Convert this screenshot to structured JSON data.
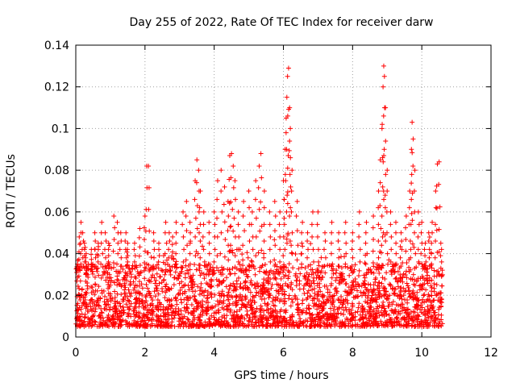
{
  "chart_data": {
    "type": "scatter",
    "title": "Day 255 of 2022, Rate Of TEC Index for receiver darw",
    "xlabel": "GPS time / hours",
    "ylabel": "ROTI / TECUs",
    "xlim": [
      0,
      12
    ],
    "ylim": [
      0,
      0.14
    ],
    "xticks": [
      "0",
      "2",
      "4",
      "6",
      "8",
      "10",
      "12"
    ],
    "yticks": [
      "0",
      "0.02",
      "0.04",
      "0.06",
      "0.08",
      "0.1",
      "0.12",
      "0.14"
    ],
    "grid": true,
    "marker": "+",
    "color": "#ff0000",
    "baseline_band": {
      "min": 0.005,
      "max": 0.035
    },
    "points": [
      [
        0.05,
        0.035
      ],
      [
        0.1,
        0.048
      ],
      [
        0.15,
        0.055
      ],
      [
        0.2,
        0.05
      ],
      [
        0.25,
        0.045
      ],
      [
        0.3,
        0.04
      ],
      [
        0.45,
        0.042
      ],
      [
        0.55,
        0.05
      ],
      [
        0.65,
        0.045
      ],
      [
        0.75,
        0.055
      ],
      [
        0.85,
        0.05
      ],
      [
        0.95,
        0.045
      ],
      [
        1.1,
        0.058
      ],
      [
        1.2,
        0.055
      ],
      [
        1.3,
        0.05
      ],
      [
        1.45,
        0.05
      ],
      [
        1.5,
        0.045
      ],
      [
        1.7,
        0.045
      ],
      [
        1.85,
        0.052
      ],
      [
        2.0,
        0.058
      ],
      [
        2.05,
        0.082
      ],
      [
        2.1,
        0.082
      ],
      [
        2.25,
        0.05
      ],
      [
        2.4,
        0.045
      ],
      [
        2.6,
        0.055
      ],
      [
        2.7,
        0.05
      ],
      [
        2.8,
        0.048
      ],
      [
        2.9,
        0.055
      ],
      [
        3.1,
        0.06
      ],
      [
        3.2,
        0.065
      ],
      [
        3.3,
        0.055
      ],
      [
        3.45,
        0.075
      ],
      [
        3.5,
        0.085
      ],
      [
        3.55,
        0.08
      ],
      [
        3.6,
        0.07
      ],
      [
        3.7,
        0.06
      ],
      [
        3.85,
        0.055
      ],
      [
        4.0,
        0.06
      ],
      [
        4.1,
        0.075
      ],
      [
        4.2,
        0.08
      ],
      [
        4.3,
        0.072
      ],
      [
        4.4,
        0.065
      ],
      [
        4.45,
        0.087
      ],
      [
        4.5,
        0.088
      ],
      [
        4.55,
        0.082
      ],
      [
        4.6,
        0.075
      ],
      [
        4.7,
        0.06
      ],
      [
        4.85,
        0.065
      ],
      [
        5.0,
        0.07
      ],
      [
        5.1,
        0.06
      ],
      [
        5.2,
        0.075
      ],
      [
        5.3,
        0.082
      ],
      [
        5.35,
        0.088
      ],
      [
        5.45,
        0.07
      ],
      [
        5.6,
        0.06
      ],
      [
        5.75,
        0.065
      ],
      [
        5.9,
        0.06
      ],
      [
        6.0,
        0.075
      ],
      [
        6.05,
        0.09
      ],
      [
        6.08,
        0.105
      ],
      [
        6.1,
        0.115
      ],
      [
        6.12,
        0.125
      ],
      [
        6.15,
        0.129
      ],
      [
        6.18,
        0.11
      ],
      [
        6.2,
        0.1
      ],
      [
        6.25,
        0.08
      ],
      [
        6.4,
        0.065
      ],
      [
        6.55,
        0.055
      ],
      [
        6.7,
        0.05
      ],
      [
        6.85,
        0.06
      ],
      [
        7.0,
        0.06
      ],
      [
        7.2,
        0.05
      ],
      [
        7.4,
        0.055
      ],
      [
        7.6,
        0.05
      ],
      [
        7.8,
        0.055
      ],
      [
        8.0,
        0.05
      ],
      [
        8.2,
        0.06
      ],
      [
        8.4,
        0.055
      ],
      [
        8.6,
        0.058
      ],
      [
        8.75,
        0.07
      ],
      [
        8.8,
        0.085
      ],
      [
        8.85,
        0.1
      ],
      [
        8.88,
        0.12
      ],
      [
        8.9,
        0.13
      ],
      [
        8.92,
        0.125
      ],
      [
        8.95,
        0.11
      ],
      [
        9.0,
        0.08
      ],
      [
        9.1,
        0.06
      ],
      [
        9.25,
        0.055
      ],
      [
        9.4,
        0.05
      ],
      [
        9.55,
        0.058
      ],
      [
        9.65,
        0.07
      ],
      [
        9.7,
        0.09
      ],
      [
        9.72,
        0.103
      ],
      [
        9.75,
        0.095
      ],
      [
        9.8,
        0.08
      ],
      [
        9.9,
        0.06
      ],
      [
        10.0,
        0.055
      ],
      [
        10.1,
        0.045
      ],
      [
        10.2,
        0.05
      ],
      [
        10.3,
        0.055
      ],
      [
        10.4,
        0.07
      ],
      [
        10.45,
        0.083
      ],
      [
        10.5,
        0.084
      ],
      [
        10.55,
        0.045
      ]
    ]
  }
}
